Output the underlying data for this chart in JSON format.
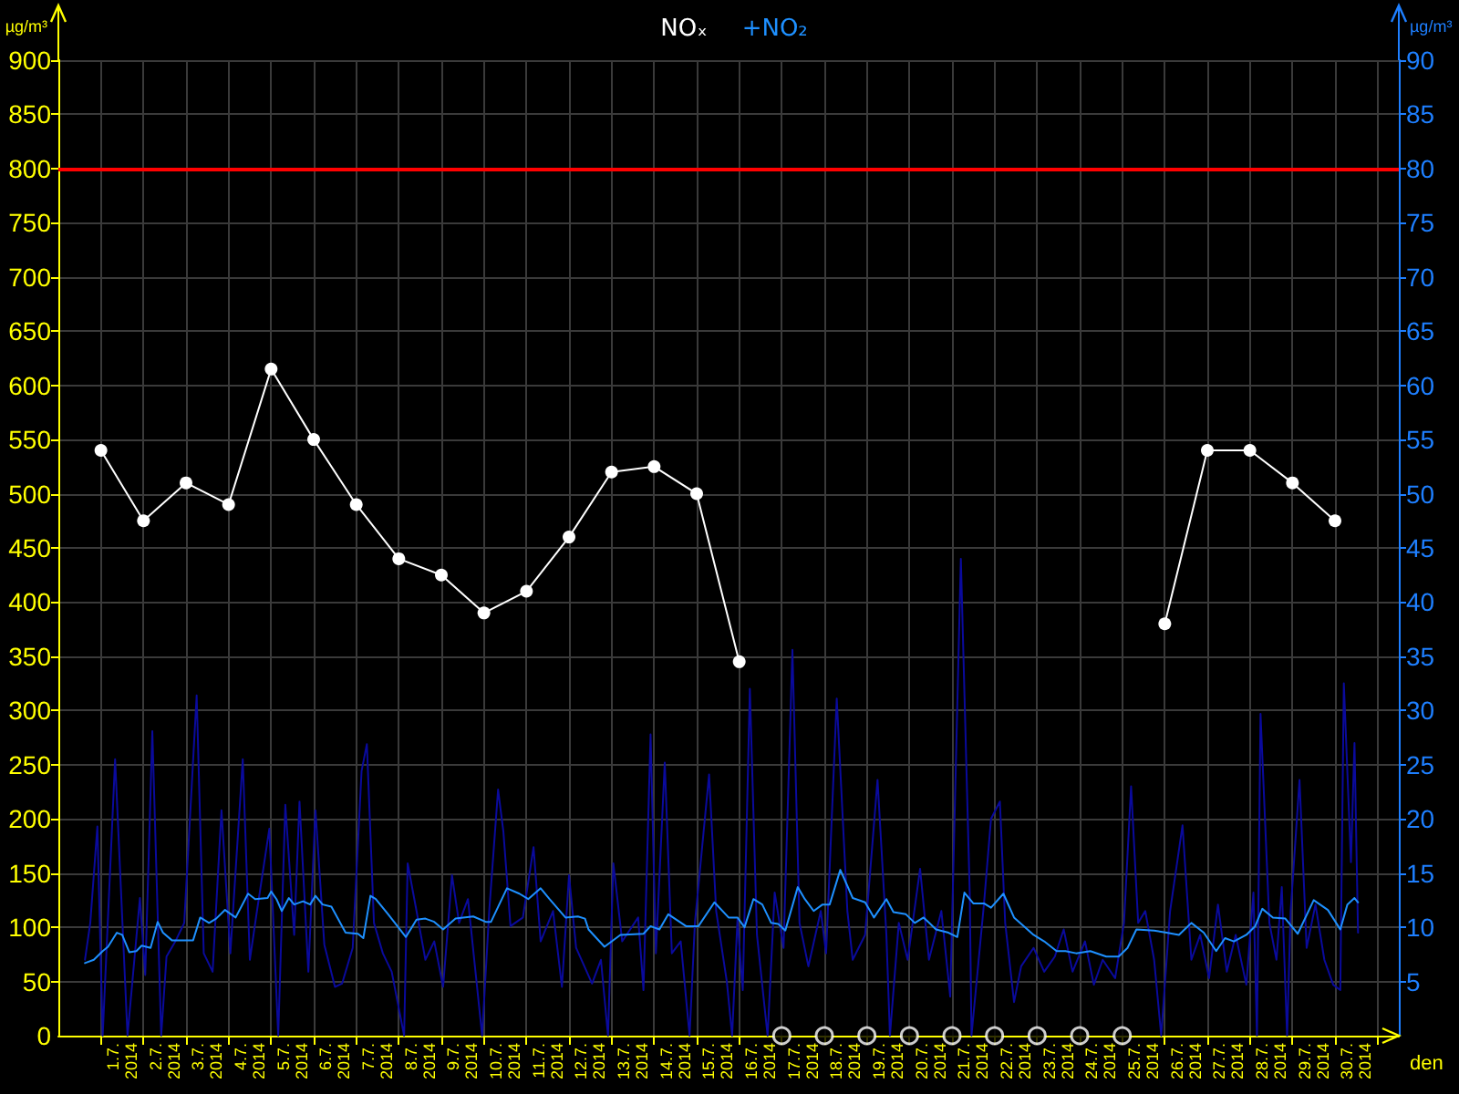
{
  "chart_data": {
    "type": "line",
    "xlabel": "den",
    "ylabel": "µg/m³",
    "y2label": "µg/m³",
    "xlim": [
      "2014-06-30T00:00",
      "2014-07-31T12:00"
    ],
    "xticks": [
      {
        "value": "2014-07-01T00:00",
        "label": null
      },
      {
        "value": "2014-07-02T00:00",
        "label": null
      },
      {
        "value": "2014-07-03T00:00",
        "label": null
      },
      {
        "value": "2014-07-04T00:00",
        "label": null
      },
      {
        "value": "2014-07-05T00:00",
        "label": null
      },
      {
        "value": "2014-07-06T00:00",
        "label": null
      },
      {
        "value": "2014-07-07T00:00",
        "label": null
      },
      {
        "value": "2014-07-08T00:00",
        "label": null
      },
      {
        "value": "2014-07-09T00:00",
        "label": null
      },
      {
        "value": "2014-07-10T00:00",
        "label": null
      },
      {
        "value": "2014-07-11T00:00",
        "label": null
      },
      {
        "value": "2014-07-12T00:00",
        "label": null
      },
      {
        "value": "2014-07-13T00:00",
        "label": null
      },
      {
        "value": "2014-07-14T00:00",
        "label": null
      },
      {
        "value": "2014-07-15T00:00",
        "label": null
      },
      {
        "value": "2014-07-16T00:00",
        "label": null
      },
      {
        "value": "2014-07-17T00:00",
        "label": null
      },
      {
        "value": "2014-07-18T00:00",
        "label": null
      },
      {
        "value": "2014-07-19T00:00",
        "label": null
      },
      {
        "value": "2014-07-20T00:00",
        "label": null
      },
      {
        "value": "2014-07-21T00:00",
        "label": null
      },
      {
        "value": "2014-07-22T00:00",
        "label": null
      },
      {
        "value": "2014-07-23T00:00",
        "label": null
      },
      {
        "value": "2014-07-24T00:00",
        "label": null
      },
      {
        "value": "2014-07-25T00:00",
        "label": null
      },
      {
        "value": "2014-07-26T00:00",
        "label": null
      },
      {
        "value": "2014-07-27T00:00",
        "label": null
      },
      {
        "value": "2014-07-28T00:00",
        "label": null
      },
      {
        "value": "2014-07-29T00:00",
        "label": null
      },
      {
        "value": "2014-07-30T00:00",
        "label": null
      },
      {
        "value": "2014-07-31T00:00",
        "label": null
      },
      {
        "value": "2014-07-01T12:00",
        "label": "1.7.\n2014"
      },
      {
        "value": "2014-07-02T12:00",
        "label": "2.7.\n2014"
      },
      {
        "value": "2014-07-03T12:00",
        "label": "3.7.\n2014"
      },
      {
        "value": "2014-07-04T12:00",
        "label": "4.7.\n2014"
      },
      {
        "value": "2014-07-05T12:00",
        "label": "5.7.\n2014"
      },
      {
        "value": "2014-07-06T12:00",
        "label": "6.7.\n2014"
      },
      {
        "value": "2014-07-07T12:00",
        "label": "7.7.\n2014"
      },
      {
        "value": "2014-07-08T12:00",
        "label": "8.7.\n2014"
      },
      {
        "value": "2014-07-09T12:00",
        "label": "9.7.\n2014"
      },
      {
        "value": "2014-07-10T12:00",
        "label": "10.7.\n2014"
      },
      {
        "value": "2014-07-11T12:00",
        "label": "11.7.\n2014"
      },
      {
        "value": "2014-07-12T12:00",
        "label": "12.7.\n2014"
      },
      {
        "value": "2014-07-13T12:00",
        "label": "13.7.\n2014"
      },
      {
        "value": "2014-07-14T12:00",
        "label": "14.7.\n2014"
      },
      {
        "value": "2014-07-15T12:00",
        "label": "15.7.\n2014"
      },
      {
        "value": "2014-07-16T12:00",
        "label": "16.7.\n2014"
      },
      {
        "value": "2014-07-17T12:00",
        "label": "17.7.\n2014"
      },
      {
        "value": "2014-07-18T12:00",
        "label": "18.7.\n2014"
      },
      {
        "value": "2014-07-19T12:00",
        "label": "19.7.\n2014"
      },
      {
        "value": "2014-07-20T12:00",
        "label": "20.7.\n2014"
      },
      {
        "value": "2014-07-21T12:00",
        "label": "21.7.\n2014"
      },
      {
        "value": "2014-07-22T12:00",
        "label": "22.7.\n2014"
      },
      {
        "value": "2014-07-23T12:00",
        "label": "23.7.\n2014"
      },
      {
        "value": "2014-07-24T12:00",
        "label": "24.7.\n2014"
      },
      {
        "value": "2014-07-25T12:00",
        "label": "25.7.\n2014"
      },
      {
        "value": "2014-07-26T12:00",
        "label": "26.7.\n2014"
      },
      {
        "value": "2014-07-27T12:00",
        "label": "27.7.\n2014"
      },
      {
        "value": "2014-07-28T12:00",
        "label": "28.7.\n2014"
      },
      {
        "value": "2014-07-29T12:00",
        "label": "29.7.\n2014"
      },
      {
        "value": "2014-07-30T12:00",
        "label": "30.7.\n2014"
      }
    ],
    "ylim": [
      0,
      900
    ],
    "yticks": [
      0,
      50,
      100,
      150,
      200,
      250,
      300,
      350,
      400,
      450,
      500,
      550,
      600,
      650,
      700,
      750,
      800,
      850,
      900
    ],
    "y2lim": [
      0,
      90
    ],
    "y2ticks": [
      5,
      10,
      15,
      20,
      25,
      30,
      35,
      40,
      45,
      50,
      55,
      60,
      65,
      70,
      75,
      80,
      85,
      90
    ],
    "grid": true,
    "legend": "top",
    "ref_lines": [
      {
        "axis": "y",
        "value": 800,
        "color": "#ff0000"
      }
    ],
    "series": [
      {
        "name": "NOₓ",
        "color": "#ffffff",
        "marker": "circle",
        "axis": "y",
        "x": [
          "2014-07-01T00:00",
          "2014-07-02T00:00",
          "2014-07-03T00:00",
          "2014-07-04T00:00",
          "2014-07-05T00:00",
          "2014-07-06T00:00",
          "2014-07-07T00:00",
          "2014-07-08T00:00",
          "2014-07-09T00:00",
          "2014-07-10T00:00",
          "2014-07-11T00:00",
          "2014-07-12T00:00",
          "2014-07-13T00:00",
          "2014-07-14T00:00",
          "2014-07-15T00:00",
          "2014-07-16T00:00",
          "2014-07-17T00:00",
          "2014-07-18T00:00",
          "2014-07-19T00:00",
          "2014-07-20T00:00",
          "2014-07-21T00:00",
          "2014-07-22T00:00",
          "2014-07-23T00:00",
          "2014-07-24T00:00",
          "2014-07-25T00:00",
          "2014-07-26T00:00",
          "2014-07-27T00:00",
          "2014-07-28T00:00",
          "2014-07-29T00:00",
          "2014-07-30T00:00"
        ],
        "values": [
          540,
          475,
          510,
          490,
          615,
          550,
          490,
          440,
          425,
          390,
          410,
          460,
          520,
          525,
          500,
          345,
          null,
          null,
          null,
          null,
          null,
          null,
          null,
          null,
          null,
          380,
          540,
          540,
          510,
          475
        ]
      },
      {
        "name": "+NO₂",
        "color": "#1e90ff",
        "axis": "y2",
        "x": [
          "2014-06-30T15:00",
          "2014-06-30T20:00",
          "2014-07-01T01:00",
          "2014-07-01T04:00",
          "2014-07-01T09:00",
          "2014-07-01T12:00",
          "2014-07-01T16:00",
          "2014-07-01T20:00",
          "2014-07-01T23:00",
          "2014-07-02T04:00",
          "2014-07-02T08:00",
          "2014-07-02T11:00",
          "2014-07-02T16:00",
          "2014-07-03T04:00",
          "2014-07-03T08:00",
          "2014-07-03T13:00",
          "2014-07-03T17:00",
          "2014-07-03T22:00",
          "2014-07-04T04:00",
          "2014-07-04T11:00",
          "2014-07-04T15:00",
          "2014-07-04T22:00",
          "2014-07-05T00:00",
          "2014-07-05T03:00",
          "2014-07-05T06:00",
          "2014-07-05T10:00",
          "2014-07-05T13:00",
          "2014-07-05T18:00",
          "2014-07-05T22:00",
          "2014-07-06T01:00",
          "2014-07-06T05:00",
          "2014-07-06T10:00",
          "2014-07-06T18:00",
          "2014-07-07T01:00",
          "2014-07-07T04:00",
          "2014-07-07T08:00",
          "2014-07-07T11:00",
          "2014-07-07T18:00",
          "2014-07-08T04:00",
          "2014-07-08T10:00",
          "2014-07-08T15:00",
          "2014-07-08T20:00",
          "2014-07-09T01:00",
          "2014-07-09T08:00",
          "2014-07-09T18:00",
          "2014-07-10T01:00",
          "2014-07-10T04:00",
          "2014-07-10T13:00",
          "2014-07-10T20:00",
          "2014-07-11T01:00",
          "2014-07-11T08:00",
          "2014-07-11T13:00",
          "2014-07-11T22:00",
          "2014-07-12T05:00",
          "2014-07-12T09:00",
          "2014-07-12T11:00",
          "2014-07-12T20:00",
          "2014-07-13T05:00",
          "2014-07-13T18:00",
          "2014-07-13T22:00",
          "2014-07-14T03:00",
          "2014-07-14T08:00",
          "2014-07-14T18:00",
          "2014-07-15T01:00",
          "2014-07-15T10:00",
          "2014-07-15T18:00",
          "2014-07-15T23:00",
          "2014-07-16T03:00",
          "2014-07-16T08:00",
          "2014-07-16T13:00",
          "2014-07-16T18:00",
          "2014-07-16T22:00",
          "2014-07-17T02:00",
          "2014-07-17T09:00",
          "2014-07-17T13:00",
          "2014-07-17T18:00",
          "2014-07-17T23:00",
          "2014-07-18T03:00",
          "2014-07-18T09:00",
          "2014-07-18T16:00",
          "2014-07-18T23:00",
          "2014-07-19T04:00",
          "2014-07-19T11:00",
          "2014-07-19T15:00",
          "2014-07-19T22:00",
          "2014-07-20T03:00",
          "2014-07-20T08:00",
          "2014-07-20T15:00",
          "2014-07-20T22:00",
          "2014-07-21T03:00",
          "2014-07-21T07:00",
          "2014-07-21T12:00",
          "2014-07-21T18:00",
          "2014-07-21T22:00",
          "2014-07-22T05:00",
          "2014-07-22T11:00",
          "2014-07-22T22:00",
          "2014-07-23T04:00",
          "2014-07-23T11:00",
          "2014-07-23T16:00",
          "2014-07-23T22:00",
          "2014-07-24T06:00",
          "2014-07-24T15:00",
          "2014-07-24T22:00",
          "2014-07-25T03:00",
          "2014-07-25T08:00",
          "2014-07-25T18:00",
          "2014-07-26T01:00",
          "2014-07-26T08:00",
          "2014-07-26T15:00",
          "2014-07-26T22:00",
          "2014-07-27T05:00",
          "2014-07-27T10:00",
          "2014-07-27T15:00",
          "2014-07-27T22:00",
          "2014-07-28T03:00",
          "2014-07-28T07:00",
          "2014-07-28T13:00",
          "2014-07-28T20:00",
          "2014-07-29T03:00",
          "2014-07-29T12:00",
          "2014-07-29T20:00",
          "2014-07-30T03:00",
          "2014-07-30T07:00",
          "2014-07-30T11:00",
          "2014-07-30T13:00"
        ],
        "values": [
          6.7,
          7.0,
          7.8,
          8.2,
          9.5,
          9.3,
          7.7,
          7.8,
          8.3,
          8.1,
          10.5,
          9.5,
          8.8,
          8.8,
          10.9,
          10.4,
          10.8,
          11.6,
          10.9,
          13.1,
          12.6,
          12.7,
          13.3,
          12.6,
          11.5,
          12.7,
          12.1,
          12.4,
          12.1,
          12.9,
          12.1,
          11.9,
          9.5,
          9.4,
          9.0,
          12.9,
          12.6,
          11.2,
          9.1,
          10.7,
          10.8,
          10.5,
          9.8,
          10.8,
          11.0,
          10.5,
          10.5,
          13.6,
          13.1,
          12.6,
          13.6,
          12.6,
          10.9,
          11.0,
          10.8,
          9.8,
          8.2,
          9.3,
          9.4,
          10.1,
          9.8,
          11.2,
          10.1,
          10.1,
          12.3,
          10.9,
          10.9,
          10.0,
          12.6,
          12.1,
          10.4,
          10.3,
          9.7,
          13.7,
          12.6,
          11.5,
          12.1,
          12.1,
          15.3,
          12.7,
          12.3,
          10.9,
          12.6,
          11.4,
          11.2,
          10.4,
          10.9,
          9.8,
          9.5,
          9.1,
          13.2,
          12.2,
          12.2,
          11.8,
          13.1,
          10.9,
          9.3,
          8.7,
          7.8,
          7.8,
          7.6,
          7.8,
          7.3,
          7.3,
          8.1,
          9.8,
          9.7,
          9.5,
          9.3,
          10.4,
          9.5,
          7.8,
          9.0,
          8.7,
          9.3,
          10.1,
          11.7,
          10.9,
          10.8,
          9.4,
          12.5,
          11.6,
          9.8,
          12.1,
          12.7,
          12.3
        ]
      },
      {
        "color": "#0a0a9c",
        "axis": "y2",
        "x": [
          "2014-06-30T15:00",
          "2014-06-30T18:00",
          "2014-06-30T22:00",
          "2014-07-01T01:00",
          "2014-07-01T08:00",
          "2014-07-01T15:00",
          "2014-07-01T22:00",
          "2014-07-02T01:00",
          "2014-07-02T05:00",
          "2014-07-02T10:00",
          "2014-07-02T13:00",
          "2014-07-02T18:00",
          "2014-07-02T23:00",
          "2014-07-03T06:00",
          "2014-07-03T10:00",
          "2014-07-03T15:00",
          "2014-07-03T20:00",
          "2014-07-04T01:00",
          "2014-07-04T08:00",
          "2014-07-04T12:00",
          "2014-07-04T16:00",
          "2014-07-04T23:00",
          "2014-07-05T04:00",
          "2014-07-05T08:00",
          "2014-07-05T13:00",
          "2014-07-05T16:00",
          "2014-07-05T21:00",
          "2014-07-06T01:00",
          "2014-07-06T06:00",
          "2014-07-06T12:00",
          "2014-07-06T16:00",
          "2014-07-06T22:00",
          "2014-07-07T03:00",
          "2014-07-07T06:00",
          "2014-07-07T10:00",
          "2014-07-07T15:00",
          "2014-07-07T20:00",
          "2014-07-08T03:00",
          "2014-07-08T05:00",
          "2014-07-08T10:00",
          "2014-07-08T15:00",
          "2014-07-08T20:00",
          "2014-07-09T01:00",
          "2014-07-09T06:00",
          "2014-07-09T10:00",
          "2014-07-09T15:00",
          "2014-07-09T23:00",
          "2014-07-10T03:00",
          "2014-07-10T08:00",
          "2014-07-10T11:00",
          "2014-07-10T15:00",
          "2014-07-10T22:00",
          "2014-07-11T04:00",
          "2014-07-11T08:00",
          "2014-07-11T15:00",
          "2014-07-11T20:00",
          "2014-07-12T00:00",
          "2014-07-12T04:00",
          "2014-07-12T13:00",
          "2014-07-12T18:00",
          "2014-07-12T22:00",
          "2014-07-13T01:00",
          "2014-07-13T06:00",
          "2014-07-13T15:00",
          "2014-07-13T18:00",
          "2014-07-13T22:00",
          "2014-07-14T01:00",
          "2014-07-14T06:00",
          "2014-07-14T10:00",
          "2014-07-14T15:00",
          "2014-07-14T20:00",
          "2014-07-14T23:00",
          "2014-07-15T07:00",
          "2014-07-15T11:00",
          "2014-07-15T17:00",
          "2014-07-15T20:00",
          "2014-07-15T23:00",
          "2014-07-16T02:00",
          "2014-07-16T06:00",
          "2014-07-16T10:00",
          "2014-07-16T16:00",
          "2014-07-16T20:00",
          "2014-07-17T01:00",
          "2014-07-17T06:00",
          "2014-07-17T10:00",
          "2014-07-17T15:00",
          "2014-07-17T22:00",
          "2014-07-18T01:00",
          "2014-07-18T07:00",
          "2014-07-18T13:00",
          "2014-07-18T16:00",
          "2014-07-18T23:00",
          "2014-07-19T06:00",
          "2014-07-19T11:00",
          "2014-07-19T13:00",
          "2014-07-19T18:00",
          "2014-07-19T23:00",
          "2014-07-20T06:00",
          "2014-07-20T11:00",
          "2014-07-20T18:00",
          "2014-07-20T23:00",
          "2014-07-21T05:00",
          "2014-07-21T10:00",
          "2014-07-21T11:00",
          "2014-07-21T18:00",
          "2014-07-21T22:00",
          "2014-07-22T03:00",
          "2014-07-22T06:00",
          "2014-07-22T11:00",
          "2014-07-22T15:00",
          "2014-07-22T22:00",
          "2014-07-23T04:00",
          "2014-07-23T10:00",
          "2014-07-23T15:00",
          "2014-07-23T20:00",
          "2014-07-24T03:00",
          "2014-07-24T08:00",
          "2014-07-24T13:00",
          "2014-07-24T20:00",
          "2014-07-25T01:00",
          "2014-07-25T05:00",
          "2014-07-25T09:00",
          "2014-07-25T13:00",
          "2014-07-25T18:00",
          "2014-07-25T22:00",
          "2014-07-26T03:00",
          "2014-07-26T10:00",
          "2014-07-26T15:00",
          "2014-07-26T20:00",
          "2014-07-27T01:00",
          "2014-07-27T06:00",
          "2014-07-27T11:00",
          "2014-07-27T16:00",
          "2014-07-27T22:00",
          "2014-07-28T02:00",
          "2014-07-28T04:00",
          "2014-07-28T06:00",
          "2014-07-28T11:00",
          "2014-07-28T15:00",
          "2014-07-28T18:00",
          "2014-07-28T21:00",
          "2014-07-28T23:00",
          "2014-07-29T04:00",
          "2014-07-29T08:00",
          "2014-07-29T13:00",
          "2014-07-29T18:00",
          "2014-07-29T23:00",
          "2014-07-30T03:00",
          "2014-07-30T05:00",
          "2014-07-30T09:00",
          "2014-07-30T11:00",
          "2014-07-30T13:00"
        ],
        "values": [
          7.0,
          10.4,
          19.3,
          0,
          25.5,
          0,
          12.7,
          5.6,
          28.1,
          0,
          7.3,
          8.7,
          10.4,
          31.4,
          7.6,
          5.9,
          20.8,
          7.6,
          25.5,
          7.0,
          11.5,
          19.1,
          0,
          21.3,
          9.3,
          21.6,
          5.9,
          20.8,
          8.4,
          4.5,
          4.8,
          8.1,
          24.4,
          26.9,
          10.4,
          7.6,
          5.9,
          0,
          15.9,
          11.5,
          7.0,
          8.7,
          4.5,
          14.8,
          10.4,
          12.6,
          0,
          11.5,
          22.7,
          18.8,
          10.1,
          10.9,
          17.4,
          8.7,
          11.5,
          4.5,
          14.8,
          8.1,
          4.8,
          7.0,
          0,
          15.9,
          8.7,
          10.9,
          4.2,
          27.8,
          7.6,
          25.2,
          7.6,
          8.7,
          0,
          10.4,
          24.1,
          11.5,
          5.0,
          0,
          10.7,
          4.2,
          32.0,
          9.3,
          0,
          13.2,
          8.1,
          35.6,
          10.4,
          6.4,
          11.5,
          7.6,
          31.1,
          11.5,
          7.0,
          9.3,
          23.6,
          9.3,
          0,
          10.4,
          7.0,
          15.4,
          7.0,
          11.5,
          3.6,
          44,
          13.2,
          0,
          12.1,
          20.0,
          21.6,
          10.4,
          3.1,
          6.4,
          8.1,
          5.9,
          7.3,
          9.8,
          5.9,
          8.7,
          4.7,
          7.0,
          5.3,
          10.4,
          23.0,
          10.4,
          11.5,
          7.0,
          0,
          11.5,
          19.4,
          7.0,
          9.3,
          5.3,
          12.1,
          5.9,
          9.3,
          4.7,
          13.2,
          0,
          29.7,
          10.4,
          7.0,
          13.7,
          0,
          11.5,
          23.6,
          8.1,
          12.1,
          7.0,
          4.7,
          4.2,
          32.5,
          16.0,
          27,
          9.5
        ]
      },
      {
        "type": "scatter",
        "color": "#ffffff",
        "marker": "circle",
        "axis": "y",
        "x": [
          "2014-07-17T00:00",
          "2014-07-18T00:00",
          "2014-07-19T00:00",
          "2014-07-20T00:00",
          "2014-07-21T00:00",
          "2014-07-22T00:00",
          "2014-07-23T00:00",
          "2014-07-24T00:00",
          "2014-07-25T00:00"
        ],
        "values": [
          0,
          0,
          0,
          0,
          0,
          0,
          0,
          0,
          0
        ]
      }
    ]
  }
}
